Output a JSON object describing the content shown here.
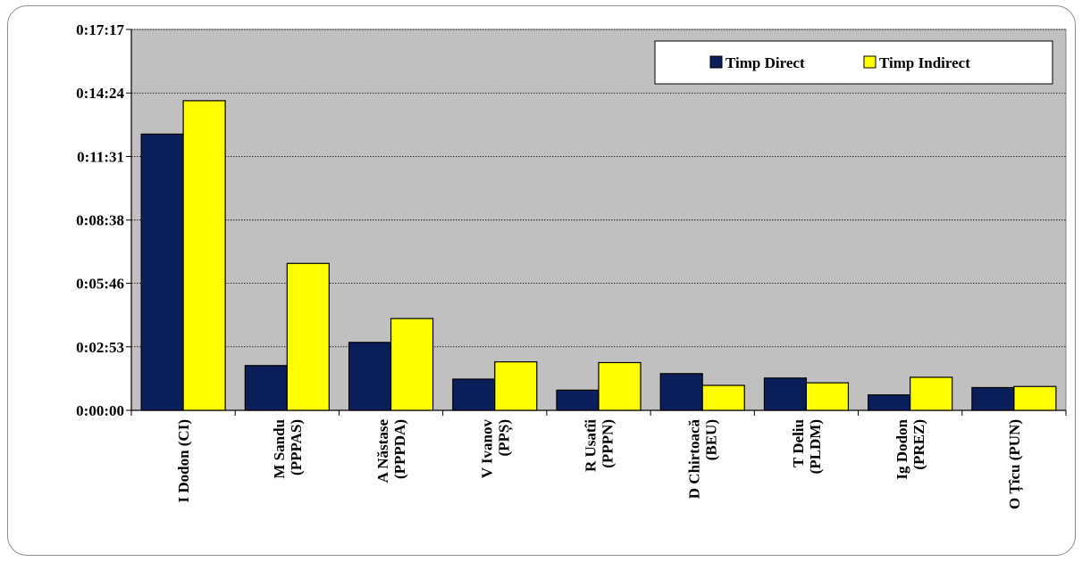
{
  "chart_data": {
    "type": "bar",
    "categories": [
      [
        "I Dodon (CI)"
      ],
      [
        "M Sandu",
        "(PPPAS)"
      ],
      [
        "A Năstase",
        "(PPPDA)"
      ],
      [
        "V Ivanov",
        "(PPȘ)"
      ],
      [
        "R Usatîi",
        "(PPPN)"
      ],
      [
        "D Chirtoacă",
        "(BEU)"
      ],
      [
        "T Deliu",
        "(PLDM)"
      ],
      [
        "Ig Dodon",
        "(PREZ)"
      ],
      [
        "O Țîcu (PUN)"
      ]
    ],
    "series": [
      {
        "name": "Timp Direct",
        "color": "#0a1e5a",
        "values": [
          752,
          122,
          185,
          85,
          55,
          100,
          88,
          42,
          62
        ]
      },
      {
        "name": "Timp Indirect",
        "color": "#ffff00",
        "values": [
          843,
          400,
          250,
          132,
          130,
          68,
          75,
          90,
          65
        ]
      }
    ],
    "value_unit": "seconds",
    "ylim": [
      0,
      1037
    ],
    "yticks": [
      0,
      173,
      346,
      518,
      691,
      864,
      1037
    ],
    "ytick_labels": [
      "0:00:00",
      "0:02:53",
      "0:05:46",
      "0:08:38",
      "0:11:31",
      "0:14:24",
      "0:17:17"
    ],
    "grid": true,
    "legend_position": "top-right",
    "plot_background": "#c0c0c0"
  }
}
